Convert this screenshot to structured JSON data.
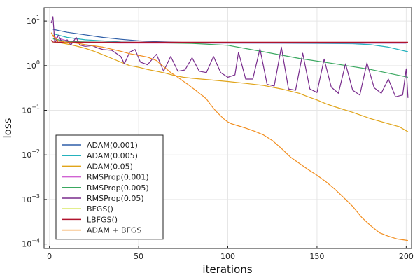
{
  "chart_data": {
    "type": "line",
    "title": "",
    "xlabel": "iterations",
    "ylabel": "loss",
    "xlim": [
      -3,
      203
    ],
    "ylim_log10": [
      -4.1,
      1.3
    ],
    "yscale": "log",
    "grid": true,
    "legend_position": "bottom-left",
    "x_ticks": [
      0,
      50,
      100,
      150,
      200
    ],
    "y_ticks": [
      {
        "exp": 1,
        "base": "10",
        "sup": "1"
      },
      {
        "exp": 0,
        "base": "10",
        "sup": "0"
      },
      {
        "exp": -1,
        "base": "10",
        "sup": "−1"
      },
      {
        "exp": -2,
        "base": "10",
        "sup": "−2"
      },
      {
        "exp": -3,
        "base": "10",
        "sup": "−3"
      },
      {
        "exp": -4,
        "base": "10",
        "sup": "−4"
      }
    ],
    "series": [
      {
        "name": "ADAM(0.001)",
        "color": "#2f5fa8",
        "points": [
          [
            2,
            6.5
          ],
          [
            10,
            5.6
          ],
          [
            20,
            4.9
          ],
          [
            30,
            4.3
          ],
          [
            40,
            3.9
          ],
          [
            50,
            3.6
          ],
          [
            60,
            3.45
          ],
          [
            70,
            3.35
          ],
          [
            80,
            3.3
          ],
          [
            100,
            3.25
          ],
          [
            150,
            3.2
          ],
          [
            200,
            3.2
          ]
        ]
      },
      {
        "name": "ADAM(0.005)",
        "color": "#24b2bd",
        "points": [
          [
            2,
            5.2
          ],
          [
            10,
            4.3
          ],
          [
            20,
            3.8
          ],
          [
            40,
            3.4
          ],
          [
            60,
            3.25
          ],
          [
            100,
            3.2
          ],
          [
            150,
            3.15
          ],
          [
            170,
            3.1
          ],
          [
            180,
            2.95
          ],
          [
            190,
            2.6
          ],
          [
            201,
            2.05
          ]
        ]
      },
      {
        "name": "ADAM(0.05)",
        "color": "#e0a419",
        "points": [
          [
            2,
            4.9
          ],
          [
            5,
            3.3
          ],
          [
            10,
            3.05
          ],
          [
            15,
            2.75
          ],
          [
            20,
            2.45
          ],
          [
            25,
            2.1
          ],
          [
            30,
            1.75
          ],
          [
            35,
            1.45
          ],
          [
            40,
            1.2
          ],
          [
            45,
            1.0
          ],
          [
            50,
            0.92
          ],
          [
            55,
            0.82
          ],
          [
            60,
            0.75
          ],
          [
            65,
            0.68
          ],
          [
            70,
            0.6
          ],
          [
            75,
            0.55
          ],
          [
            80,
            0.52
          ],
          [
            90,
            0.48
          ],
          [
            100,
            0.44
          ],
          [
            110,
            0.4
          ],
          [
            120,
            0.36
          ],
          [
            130,
            0.3
          ],
          [
            140,
            0.24
          ],
          [
            145,
            0.2
          ],
          [
            150,
            0.17
          ],
          [
            155,
            0.14
          ],
          [
            160,
            0.12
          ],
          [
            170,
            0.09
          ],
          [
            180,
            0.065
          ],
          [
            190,
            0.05
          ],
          [
            196,
            0.043
          ],
          [
            201,
            0.033
          ]
        ]
      },
      {
        "name": "RMSProp(0.001)",
        "color": "#d063d3",
        "points": [
          [
            2,
            4.5
          ],
          [
            10,
            3.6
          ],
          [
            20,
            3.3
          ],
          [
            40,
            3.2
          ],
          [
            100,
            3.2
          ],
          [
            200,
            3.2
          ]
        ]
      },
      {
        "name": "RMSProp(0.005)",
        "color": "#3aa860",
        "points": [
          [
            2,
            4.0
          ],
          [
            10,
            3.5
          ],
          [
            20,
            3.4
          ],
          [
            30,
            3.35
          ],
          [
            40,
            3.3
          ],
          [
            60,
            3.25
          ],
          [
            80,
            3.15
          ],
          [
            100,
            2.85
          ],
          [
            120,
            2.05
          ],
          [
            140,
            1.45
          ],
          [
            160,
            1.1
          ],
          [
            180,
            0.82
          ],
          [
            201,
            0.55
          ]
        ]
      },
      {
        "name": "RMSProp(0.05)",
        "color": "#782b8c",
        "points": [
          [
            1,
            9
          ],
          [
            2,
            12.5
          ],
          [
            3,
            3.2
          ],
          [
            5,
            4.8
          ],
          [
            7,
            3.4
          ],
          [
            10,
            3.8
          ],
          [
            12,
            2.9
          ],
          [
            15,
            4.3
          ],
          [
            17,
            2.9
          ],
          [
            20,
            2.7
          ],
          [
            24,
            2.8
          ],
          [
            27,
            2.5
          ],
          [
            30,
            2.3
          ],
          [
            35,
            2.2
          ],
          [
            40,
            1.6
          ],
          [
            42,
            1.1
          ],
          [
            45,
            2.0
          ],
          [
            48,
            2.3
          ],
          [
            51,
            1.2
          ],
          [
            55,
            1.05
          ],
          [
            60,
            1.8
          ],
          [
            64,
            0.75
          ],
          [
            68,
            1.6
          ],
          [
            72,
            0.75
          ],
          [
            76,
            0.8
          ],
          [
            80,
            1.5
          ],
          [
            84,
            0.75
          ],
          [
            88,
            0.7
          ],
          [
            92,
            1.6
          ],
          [
            96,
            0.7
          ],
          [
            100,
            0.55
          ],
          [
            104,
            0.62
          ],
          [
            106,
            2.0
          ],
          [
            110,
            0.5
          ],
          [
            114,
            0.5
          ],
          [
            118,
            2.4
          ],
          [
            122,
            0.38
          ],
          [
            126,
            0.35
          ],
          [
            130,
            2.6
          ],
          [
            134,
            0.3
          ],
          [
            138,
            0.28
          ],
          [
            142,
            1.9
          ],
          [
            146,
            0.3
          ],
          [
            150,
            0.25
          ],
          [
            154,
            1.4
          ],
          [
            158,
            0.33
          ],
          [
            162,
            0.24
          ],
          [
            166,
            1.1
          ],
          [
            170,
            0.28
          ],
          [
            174,
            0.22
          ],
          [
            178,
            1.15
          ],
          [
            182,
            0.32
          ],
          [
            186,
            0.24
          ],
          [
            190,
            0.5
          ],
          [
            194,
            0.2
          ],
          [
            198,
            0.22
          ],
          [
            200,
            0.85
          ],
          [
            201,
            0.19
          ]
        ]
      },
      {
        "name": "BFGS()",
        "color": "#c5dc1a",
        "points": [
          [
            1,
            3.6
          ],
          [
            2,
            3.4
          ],
          [
            5,
            3.3
          ],
          [
            200,
            3.3
          ],
          [
            201,
            3.3
          ]
        ]
      },
      {
        "name": "LBFGS()",
        "color": "#b0132d",
        "points": [
          [
            1,
            3.7
          ],
          [
            2,
            3.4
          ],
          [
            5,
            3.35
          ],
          [
            201,
            3.35
          ]
        ]
      },
      {
        "name": "ADAM + BFGS",
        "color": "#f28e1f",
        "points": [
          [
            1,
            5.5
          ],
          [
            2,
            4.6
          ],
          [
            5,
            3.6
          ],
          [
            10,
            3.3
          ],
          [
            15,
            3.2
          ],
          [
            20,
            2.95
          ],
          [
            30,
            2.6
          ],
          [
            40,
            2.1
          ],
          [
            45,
            1.85
          ],
          [
            50,
            1.7
          ],
          [
            55,
            1.55
          ],
          [
            60,
            1.3
          ],
          [
            62,
            1.1
          ],
          [
            64,
            0.95
          ],
          [
            66,
            0.82
          ],
          [
            68,
            0.7
          ],
          [
            70,
            0.62
          ],
          [
            72,
            0.55
          ],
          [
            74,
            0.48
          ],
          [
            76,
            0.42
          ],
          [
            78,
            0.37
          ],
          [
            80,
            0.32
          ],
          [
            82,
            0.28
          ],
          [
            84,
            0.24
          ],
          [
            86,
            0.21
          ],
          [
            88,
            0.18
          ],
          [
            90,
            0.14
          ],
          [
            92,
            0.11
          ],
          [
            94,
            0.09
          ],
          [
            96,
            0.075
          ],
          [
            98,
            0.063
          ],
          [
            100,
            0.055
          ],
          [
            102,
            0.05
          ],
          [
            105,
            0.046
          ],
          [
            110,
            0.04
          ],
          [
            115,
            0.034
          ],
          [
            120,
            0.028
          ],
          [
            125,
            0.021
          ],
          [
            130,
            0.014
          ],
          [
            135,
            0.009
          ],
          [
            140,
            0.0065
          ],
          [
            145,
            0.0047
          ],
          [
            150,
            0.0035
          ],
          [
            155,
            0.0025
          ],
          [
            160,
            0.0017
          ],
          [
            165,
            0.0011
          ],
          [
            170,
            0.0007
          ],
          [
            175,
            0.0004
          ],
          [
            180,
            0.00026
          ],
          [
            185,
            0.00018
          ],
          [
            190,
            0.00015
          ],
          [
            195,
            0.00013
          ],
          [
            201,
            0.00012
          ]
        ]
      }
    ]
  }
}
